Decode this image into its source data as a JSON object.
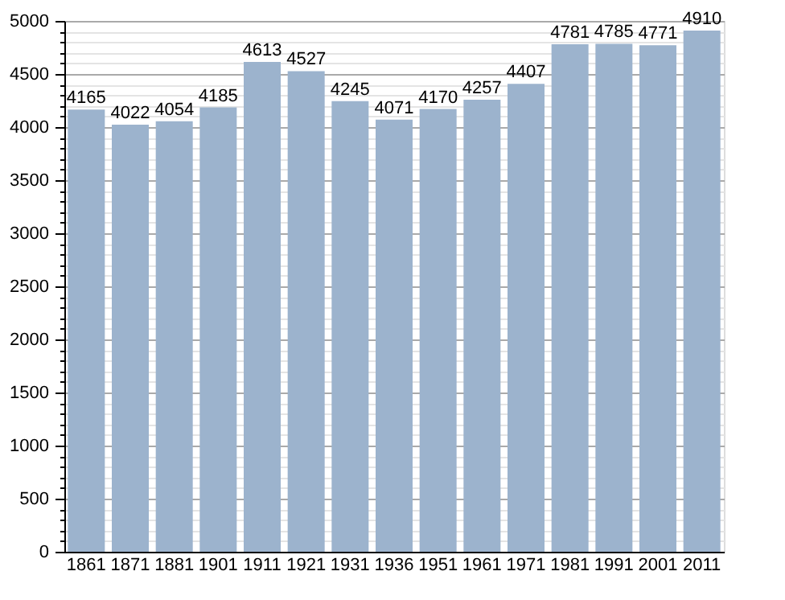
{
  "chart_data": {
    "type": "bar",
    "categories": [
      "1861",
      "1871",
      "1881",
      "1901",
      "1911",
      "1921",
      "1931",
      "1936",
      "1951",
      "1961",
      "1971",
      "1981",
      "1991",
      "2001",
      "2011"
    ],
    "values": [
      4165,
      4022,
      4054,
      4185,
      4613,
      4527,
      4245,
      4071,
      4170,
      4257,
      4407,
      4781,
      4785,
      4771,
      4910
    ],
    "color": "#9cb3cd",
    "ylim": [
      0,
      5000
    ],
    "yticks": [
      0,
      {
        "value": 100,
        "label": null
      },
      {
        "value": 200,
        "label": null
      },
      {
        "value": 300,
        "label": null
      },
      {
        "value": 400,
        "label": null
      },
      500,
      {
        "value": 600,
        "label": null
      },
      {
        "value": 700,
        "label": null
      },
      {
        "value": 800,
        "label": null
      },
      {
        "value": 900,
        "label": null
      },
      1000,
      {
        "value": 1100,
        "label": null
      },
      {
        "value": 1200,
        "label": null
      },
      {
        "value": 1300,
        "label": null
      },
      {
        "value": 1400,
        "label": null
      },
      1500,
      {
        "value": 1600,
        "label": null
      },
      {
        "value": 1700,
        "label": null
      },
      {
        "value": 1800,
        "label": null
      },
      {
        "value": 1900,
        "label": null
      },
      2000,
      {
        "value": 2100,
        "label": null
      },
      {
        "value": 2200,
        "label": null
      },
      {
        "value": 2300,
        "label": null
      },
      {
        "value": 2400,
        "label": null
      },
      2500,
      {
        "value": 2600,
        "label": null
      },
      {
        "value": 2700,
        "label": null
      },
      {
        "value": 2800,
        "label": null
      },
      {
        "value": 2900,
        "label": null
      },
      3000,
      {
        "value": 3100,
        "label": null
      },
      {
        "value": 3200,
        "label": null
      },
      {
        "value": 3300,
        "label": null
      },
      {
        "value": 3400,
        "label": null
      },
      3500,
      {
        "value": 3600,
        "label": null
      },
      {
        "value": 3700,
        "label": null
      },
      {
        "value": 3800,
        "label": null
      },
      {
        "value": 3900,
        "label": null
      },
      4000,
      {
        "value": 4100,
        "label": null
      },
      {
        "value": 4200,
        "label": null
      },
      {
        "value": 4300,
        "label": null
      },
      {
        "value": 4400,
        "label": null
      },
      4500,
      {
        "value": 4600,
        "label": null
      },
      {
        "value": 4700,
        "label": null
      },
      {
        "value": 4800,
        "label": null
      },
      {
        "value": 4900,
        "label": null
      },
      5000
    ],
    "grid": "y",
    "data_labels": true
  }
}
